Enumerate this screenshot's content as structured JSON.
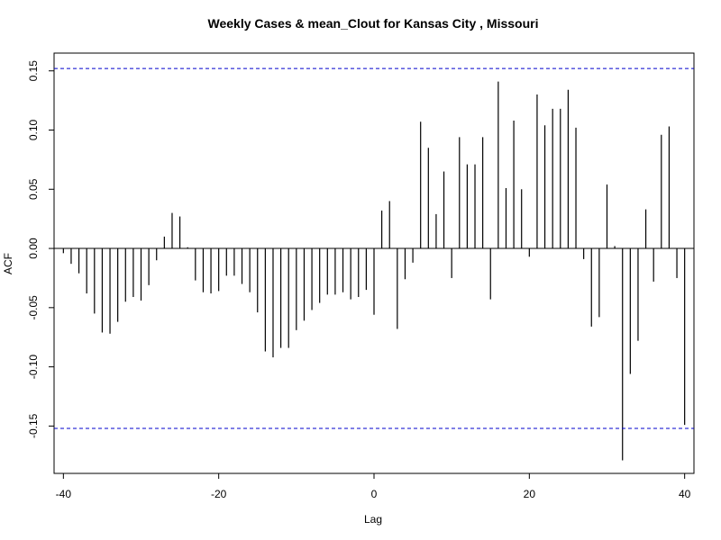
{
  "chart_data": {
    "type": "bar",
    "title": "Weekly Cases & mean_Clout for Kansas City , Missouri",
    "xlabel": "Lag",
    "ylabel": "ACF",
    "xlim": [
      -41.2,
      41.2
    ],
    "ylim": [
      -0.19,
      0.165
    ],
    "x_ticks": [
      -40,
      -20,
      0,
      20,
      40
    ],
    "x_tick_labels": [
      "-40",
      "-20",
      "0",
      "20",
      "40"
    ],
    "y_ticks": [
      -0.15,
      -0.1,
      -0.05,
      0.0,
      0.05,
      0.1,
      0.15
    ],
    "y_tick_labels": [
      "-0.15",
      "-0.10",
      "-0.05",
      "0.00",
      "0.05",
      "0.10",
      "0.15"
    ],
    "confidence_bounds": [
      0.152,
      -0.152
    ],
    "lags": [
      -40,
      -39,
      -38,
      -37,
      -36,
      -35,
      -34,
      -33,
      -32,
      -31,
      -30,
      -29,
      -28,
      -27,
      -26,
      -25,
      -24,
      -23,
      -22,
      -21,
      -20,
      -19,
      -18,
      -17,
      -16,
      -15,
      -14,
      -13,
      -12,
      -11,
      -10,
      -9,
      -8,
      -7,
      -6,
      -5,
      -4,
      -3,
      -2,
      -1,
      0,
      1,
      2,
      3,
      4,
      5,
      6,
      7,
      8,
      9,
      10,
      11,
      12,
      13,
      14,
      15,
      16,
      17,
      18,
      19,
      20,
      21,
      22,
      23,
      24,
      25,
      26,
      27,
      28,
      29,
      30,
      31,
      32,
      33,
      34,
      35,
      36,
      37,
      38,
      39,
      40
    ],
    "values": [
      -0.004,
      -0.013,
      -0.021,
      -0.038,
      -0.055,
      -0.071,
      -0.072,
      -0.062,
      -0.045,
      -0.041,
      -0.044,
      -0.031,
      -0.01,
      0.01,
      0.03,
      0.027,
      0.001,
      -0.027,
      -0.037,
      -0.038,
      -0.036,
      -0.023,
      -0.023,
      -0.03,
      -0.037,
      -0.054,
      -0.087,
      -0.092,
      -0.084,
      -0.084,
      -0.069,
      -0.061,
      -0.052,
      -0.046,
      -0.039,
      -0.039,
      -0.037,
      -0.043,
      -0.041,
      -0.035,
      -0.056,
      0.032,
      0.04,
      -0.068,
      -0.026,
      -0.012,
      0.107,
      0.085,
      0.029,
      0.065,
      -0.025,
      0.094,
      0.071,
      0.071,
      0.094,
      -0.043,
      0.141,
      0.051,
      0.108,
      0.05,
      -0.007,
      0.13,
      0.104,
      0.118,
      0.118,
      0.134,
      0.102,
      -0.009,
      -0.066,
      -0.058,
      0.054,
      0.002,
      -0.179,
      -0.106,
      -0.078,
      0.033,
      -0.028,
      0.096,
      0.103,
      -0.025,
      -0.149
    ],
    "colors": {
      "bars": "#000000",
      "bounds": "#0000cc",
      "zero_line": "#000000"
    }
  }
}
